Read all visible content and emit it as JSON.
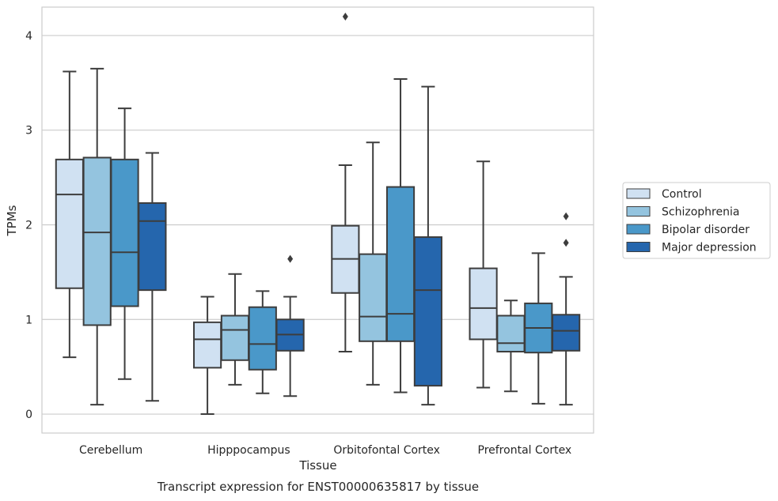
{
  "chart_data": {
    "type": "box",
    "xlabel": "Tissue",
    "ylabel": "TPMs",
    "caption": "Transcript expression for ENST00000635817 by tissue",
    "ylim": [
      -0.2,
      4.3
    ],
    "yticks": [
      0,
      1,
      2,
      3,
      4
    ],
    "grid": true,
    "legend_position": "right",
    "categories": [
      "Cerebellum",
      "Hipppocampus",
      "Orbitofontal Cortex",
      "Prefrontal Cortex"
    ],
    "series": [
      {
        "name": "Control",
        "color": "#d0e1f2",
        "boxes": [
          {
            "whislo": 0.6,
            "q1": 1.33,
            "med": 2.32,
            "q3": 2.69,
            "whishi": 3.62,
            "fliers": []
          },
          {
            "whislo": 0.0,
            "q1": 0.49,
            "med": 0.79,
            "q3": 0.97,
            "whishi": 1.24,
            "fliers": []
          },
          {
            "whislo": 0.66,
            "q1": 1.28,
            "med": 1.64,
            "q3": 1.99,
            "whishi": 2.63,
            "fliers": [
              4.2
            ]
          },
          {
            "whislo": 0.28,
            "q1": 0.79,
            "med": 1.12,
            "q3": 1.54,
            "whishi": 2.67,
            "fliers": []
          }
        ]
      },
      {
        "name": "Schizophrenia",
        "color": "#94c4df",
        "boxes": [
          {
            "whislo": 0.1,
            "q1": 0.94,
            "med": 1.92,
            "q3": 2.71,
            "whishi": 3.65,
            "fliers": []
          },
          {
            "whislo": 0.31,
            "q1": 0.57,
            "med": 0.89,
            "q3": 1.04,
            "whishi": 1.48,
            "fliers": []
          },
          {
            "whislo": 0.31,
            "q1": 0.77,
            "med": 1.03,
            "q3": 1.69,
            "whishi": 2.87,
            "fliers": []
          },
          {
            "whislo": 0.24,
            "q1": 0.66,
            "med": 0.75,
            "q3": 1.04,
            "whishi": 1.2,
            "fliers": []
          }
        ]
      },
      {
        "name": "Bipolar disorder",
        "color": "#4a98c9",
        "boxes": [
          {
            "whislo": 0.37,
            "q1": 1.14,
            "med": 1.71,
            "q3": 2.69,
            "whishi": 3.23,
            "fliers": []
          },
          {
            "whislo": 0.22,
            "q1": 0.47,
            "med": 0.74,
            "q3": 1.13,
            "whishi": 1.3,
            "fliers": []
          },
          {
            "whislo": 0.23,
            "q1": 0.77,
            "med": 1.06,
            "q3": 2.4,
            "whishi": 3.54,
            "fliers": []
          },
          {
            "whislo": 0.11,
            "q1": 0.65,
            "med": 0.91,
            "q3": 1.17,
            "whishi": 1.7,
            "fliers": []
          }
        ]
      },
      {
        "name": "Major depression",
        "color": "#2566ad",
        "boxes": [
          {
            "whislo": 0.14,
            "q1": 1.31,
            "med": 2.04,
            "q3": 2.23,
            "whishi": 2.76,
            "fliers": []
          },
          {
            "whislo": 0.19,
            "q1": 0.67,
            "med": 0.84,
            "q3": 1.0,
            "whishi": 1.24,
            "fliers": [
              1.64
            ]
          },
          {
            "whislo": 0.1,
            "q1": 0.3,
            "med": 1.31,
            "q3": 1.87,
            "whishi": 3.46,
            "fliers": []
          },
          {
            "whislo": 0.1,
            "q1": 0.67,
            "med": 0.88,
            "q3": 1.05,
            "whishi": 1.45,
            "fliers": [
              1.81,
              2.09
            ]
          }
        ]
      }
    ]
  }
}
